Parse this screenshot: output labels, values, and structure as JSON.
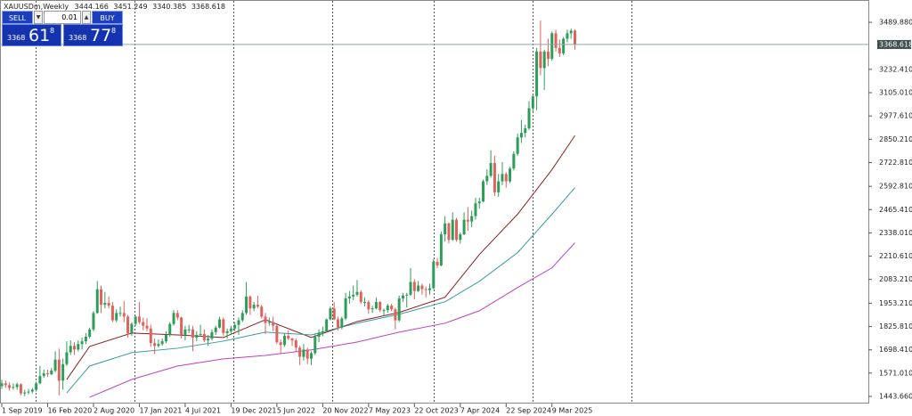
{
  "chart_data": {
    "type": "candlestick",
    "title": "XAUUSDm,Weekly",
    "categories": [
      "1 Sep 2019",
      null,
      null,
      null,
      null,
      null,
      null,
      null,
      null,
      null,
      null,
      null,
      "16 Feb 2020",
      null,
      null,
      null,
      null,
      null,
      null,
      null,
      null,
      null,
      null,
      null,
      "2 Aug 2020",
      null,
      null,
      null,
      null,
      null,
      null,
      null,
      null,
      null,
      null,
      null,
      "17 Jan 2021",
      null,
      null,
      null,
      null,
      null,
      null,
      null,
      null,
      null,
      null,
      null,
      "4 Jul 2021",
      null,
      null,
      null,
      null,
      null,
      null,
      null,
      null,
      null,
      null,
      null,
      "19 Dec 2021",
      null,
      null,
      null,
      null,
      null,
      null,
      null,
      null,
      null,
      null,
      null,
      "5 Jun 2022",
      null,
      null,
      null,
      null,
      null,
      null,
      null,
      null,
      null,
      null,
      null,
      "20 Nov 2022",
      null,
      null,
      null,
      null,
      null,
      null,
      null,
      null,
      null,
      null,
      null,
      "7 May 2023",
      null,
      null,
      null,
      null,
      null,
      null,
      null,
      null,
      null,
      null,
      null,
      "22 Oct 2023",
      null,
      null,
      null,
      null,
      null,
      null,
      null,
      null,
      null,
      null,
      null,
      "7 Apr 2024",
      null,
      null,
      null,
      null,
      null,
      null,
      null,
      null,
      null,
      null,
      null,
      "22 Sep 2024",
      null,
      null,
      null,
      null,
      null,
      null,
      null,
      null,
      null,
      null,
      null,
      "9 Mar 2025",
      null,
      null,
      null,
      null,
      null,
      null
    ],
    "candles": [
      [
        1500,
        1535,
        1485,
        1515
      ],
      [
        1515,
        1530,
        1490,
        1505
      ],
      [
        1505,
        1520,
        1475,
        1490
      ],
      [
        1490,
        1515,
        1480,
        1495
      ],
      [
        1495,
        1520,
        1480,
        1510
      ],
      [
        1510,
        1515,
        1450,
        1460
      ],
      [
        1460,
        1480,
        1445,
        1465
      ],
      [
        1465,
        1485,
        1455,
        1470
      ],
      [
        1470,
        1490,
        1460,
        1480
      ],
      [
        1480,
        1525,
        1470,
        1515
      ],
      [
        1515,
        1610,
        1510,
        1555
      ],
      [
        1555,
        1590,
        1545,
        1570
      ],
      [
        1570,
        1590,
        1550,
        1565
      ],
      [
        1565,
        1600,
        1560,
        1585
      ],
      [
        1585,
        1690,
        1575,
        1645
      ],
      [
        1645,
        1705,
        1450,
        1530
      ],
      [
        1530,
        1650,
        1480,
        1620
      ],
      [
        1620,
        1745,
        1610,
        1685
      ],
      [
        1685,
        1750,
        1670,
        1720
      ],
      [
        1720,
        1740,
        1670,
        1700
      ],
      [
        1700,
        1750,
        1690,
        1730
      ],
      [
        1730,
        1765,
        1700,
        1745
      ],
      [
        1745,
        1790,
        1730,
        1770
      ],
      [
        1770,
        1820,
        1760,
        1810
      ],
      [
        1810,
        1910,
        1800,
        1900
      ],
      [
        1900,
        2075,
        1895,
        2030
      ],
      [
        2030,
        2050,
        1900,
        1945
      ],
      [
        1945,
        2015,
        1925,
        1955
      ],
      [
        1955,
        1990,
        1925,
        1940
      ],
      [
        1940,
        1960,
        1850,
        1860
      ],
      [
        1860,
        1920,
        1850,
        1900
      ],
      [
        1900,
        1935,
        1880,
        1900
      ],
      [
        1900,
        1965,
        1850,
        1880
      ],
      [
        1880,
        1890,
        1765,
        1790
      ],
      [
        1790,
        1850,
        1775,
        1840
      ],
      [
        1840,
        1885,
        1830,
        1880
      ],
      [
        1880,
        1960,
        1840,
        1850
      ],
      [
        1850,
        1875,
        1805,
        1830
      ],
      [
        1830,
        1870,
        1800,
        1815
      ],
      [
        1815,
        1835,
        1715,
        1735
      ],
      [
        1735,
        1760,
        1675,
        1720
      ],
      [
        1720,
        1755,
        1710,
        1730
      ],
      [
        1730,
        1760,
        1720,
        1745
      ],
      [
        1745,
        1800,
        1735,
        1780
      ],
      [
        1780,
        1850,
        1770,
        1840
      ],
      [
        1840,
        1915,
        1830,
        1900
      ],
      [
        1900,
        1915,
        1860,
        1875
      ],
      [
        1875,
        1880,
        1760,
        1780
      ],
      [
        1780,
        1830,
        1750,
        1810
      ],
      [
        1810,
        1835,
        1790,
        1810
      ],
      [
        1810,
        1830,
        1690,
        1765
      ],
      [
        1765,
        1800,
        1745,
        1780
      ],
      [
        1780,
        1835,
        1770,
        1785
      ],
      [
        1785,
        1810,
        1740,
        1750
      ],
      [
        1750,
        1780,
        1720,
        1760
      ],
      [
        1760,
        1810,
        1750,
        1795
      ],
      [
        1795,
        1830,
        1780,
        1820
      ],
      [
        1820,
        1880,
        1815,
        1865
      ],
      [
        1865,
        1875,
        1775,
        1790
      ],
      [
        1790,
        1815,
        1760,
        1800
      ],
      [
        1800,
        1830,
        1780,
        1815
      ],
      [
        1815,
        1850,
        1800,
        1835
      ],
      [
        1835,
        1875,
        1780,
        1860
      ],
      [
        1860,
        1915,
        1850,
        1900
      ],
      [
        1900,
        2070,
        1890,
        1990
      ],
      [
        1990,
        1995,
        1890,
        1925
      ],
      [
        1925,
        1960,
        1910,
        1945
      ],
      [
        1945,
        1995,
        1925,
        1935
      ],
      [
        1935,
        1945,
        1870,
        1880
      ],
      [
        1880,
        1900,
        1785,
        1845
      ],
      [
        1845,
        1875,
        1830,
        1850
      ],
      [
        1850,
        1880,
        1800,
        1830
      ],
      [
        1830,
        1835,
        1730,
        1740
      ],
      [
        1740,
        1755,
        1680,
        1725
      ],
      [
        1725,
        1790,
        1715,
        1775
      ],
      [
        1775,
        1805,
        1750,
        1760
      ],
      [
        1760,
        1765,
        1720,
        1750
      ],
      [
        1750,
        1760,
        1690,
        1710
      ],
      [
        1710,
        1720,
        1615,
        1660
      ],
      [
        1660,
        1730,
        1640,
        1700
      ],
      [
        1700,
        1710,
        1620,
        1650
      ],
      [
        1650,
        1690,
        1615,
        1680
      ],
      [
        1680,
        1785,
        1670,
        1770
      ],
      [
        1770,
        1810,
        1740,
        1790
      ],
      [
        1790,
        1825,
        1775,
        1800
      ],
      [
        1800,
        1870,
        1795,
        1865
      ],
      [
        1865,
        1935,
        1860,
        1925
      ],
      [
        1925,
        1960,
        1860,
        1865
      ],
      [
        1865,
        1880,
        1805,
        1820
      ],
      [
        1820,
        1880,
        1810,
        1870
      ],
      [
        1870,
        2010,
        1860,
        1980
      ],
      [
        1980,
        2020,
        1950,
        1990
      ],
      [
        1990,
        2050,
        1970,
        2000
      ],
      [
        2000,
        2080,
        1990,
        2015
      ],
      [
        2015,
        2025,
        1950,
        1960
      ],
      [
        1960,
        1985,
        1935,
        1960
      ],
      [
        1960,
        1970,
        1895,
        1920
      ],
      [
        1920,
        1940,
        1900,
        1925
      ],
      [
        1925,
        1985,
        1920,
        1960
      ],
      [
        1960,
        1965,
        1905,
        1915
      ],
      [
        1915,
        1925,
        1885,
        1915
      ],
      [
        1915,
        1950,
        1900,
        1940
      ],
      [
        1940,
        1950,
        1910,
        1920
      ],
      [
        1920,
        1930,
        1810,
        1860
      ],
      [
        1860,
        1995,
        1850,
        1980
      ],
      [
        1980,
        2010,
        1960,
        1995
      ],
      [
        1995,
        2010,
        1930,
        2000
      ],
      [
        2000,
        2145,
        1995,
        2070
      ],
      [
        2070,
        2085,
        1975,
        2020
      ],
      [
        2020,
        2075,
        2015,
        2050
      ],
      [
        2050,
        2060,
        2000,
        2030
      ],
      [
        2030,
        2045,
        1985,
        2025
      ],
      [
        2025,
        2060,
        2000,
        2035
      ],
      [
        2035,
        2195,
        2030,
        2180
      ],
      [
        2180,
        2200,
        2145,
        2160
      ],
      [
        2160,
        2345,
        2155,
        2330
      ],
      [
        2330,
        2430,
        2290,
        2390
      ],
      [
        2390,
        2395,
        2280,
        2300
      ],
      [
        2300,
        2450,
        2295,
        2410
      ],
      [
        2410,
        2420,
        2290,
        2300
      ],
      [
        2300,
        2340,
        2280,
        2330
      ],
      [
        2330,
        2450,
        2325,
        2410
      ],
      [
        2410,
        2480,
        2350,
        2400
      ],
      [
        2400,
        2460,
        2370,
        2430
      ],
      [
        2430,
        2530,
        2410,
        2500
      ],
      [
        2500,
        2530,
        2470,
        2510
      ],
      [
        2510,
        2630,
        2505,
        2620
      ],
      [
        2620,
        2685,
        2600,
        2650
      ],
      [
        2650,
        2790,
        2640,
        2720
      ],
      [
        2720,
        2760,
        2540,
        2560
      ],
      [
        2560,
        2660,
        2535,
        2620
      ],
      [
        2620,
        2725,
        2600,
        2660
      ],
      [
        2660,
        2670,
        2585,
        2620
      ],
      [
        2620,
        2700,
        2610,
        2690
      ],
      [
        2690,
        2785,
        2680,
        2770
      ],
      [
        2770,
        2880,
        2760,
        2860
      ],
      [
        2860,
        2955,
        2830,
        2885
      ],
      [
        2885,
        2930,
        2860,
        2910
      ],
      [
        2910,
        3060,
        2900,
        3020
      ],
      [
        3020,
        3100,
        3000,
        3085
      ],
      [
        3085,
        3350,
        3010,
        3330
      ],
      [
        3330,
        3500,
        3200,
        3240
      ],
      [
        3240,
        3340,
        3120,
        3330
      ],
      [
        3330,
        3400,
        3250,
        3290
      ],
      [
        3290,
        3440,
        3280,
        3430
      ],
      [
        3430,
        3450,
        3330,
        3350
      ],
      [
        3350,
        3395,
        3300,
        3320
      ],
      [
        3320,
        3410,
        3310,
        3400
      ],
      [
        3400,
        3450,
        3380,
        3430
      ],
      [
        3430,
        3455,
        3400,
        3444.166
      ],
      [
        3444.166,
        3451.249,
        3340.385,
        3368.618
      ]
    ],
    "up_color": "#2e9d5a",
    "down_color": "#e0625c",
    "series": [
      {
        "type": "line",
        "color": "#8b1e1e",
        "x": [
          17,
          23,
          34,
          46,
          58,
          69,
          81,
          93,
          104,
          116,
          125,
          135,
          144,
          150
        ],
        "values": [
          1536,
          1717,
          1790,
          1780,
          1766,
          1863,
          1766,
          1853,
          1903,
          1986,
          2220,
          2440,
          2684,
          2870
        ]
      },
      {
        "type": "line",
        "color": "#3a9a9a",
        "x": [
          17,
          23,
          34,
          46,
          58,
          69,
          81,
          93,
          104,
          116,
          125,
          135,
          144,
          150
        ],
        "values": [
          1463,
          1610,
          1683,
          1707,
          1746,
          1795,
          1780,
          1844,
          1893,
          1961,
          2073,
          2230,
          2440,
          2586
        ]
      },
      {
        "type": "line",
        "color": "#c040c0",
        "x": [
          23,
          34,
          46,
          58,
          69,
          81,
          93,
          104,
          116,
          125,
          135,
          144,
          150
        ],
        "values": [
          1439,
          1536,
          1610,
          1649,
          1668,
          1698,
          1741,
          1795,
          1844,
          1912,
          2039,
          2147,
          2284
        ]
      }
    ],
    "ylim": [
      1404.6,
      3602.2
    ],
    "yticks": [
      {
        "value": 1443.66,
        "label": "1443.660"
      },
      {
        "value": 1571.01,
        "label": "1571.010"
      },
      {
        "value": 1698.41,
        "label": "1698.410"
      },
      {
        "value": 1825.81,
        "label": "1825.810"
      },
      {
        "value": 1953.21,
        "label": "1953.210"
      },
      {
        "value": 2083.21,
        "label": "2083.210"
      },
      {
        "value": 2210.61,
        "label": "2210.610"
      },
      {
        "value": 2338.01,
        "label": "2338.010"
      },
      {
        "value": 2465.41,
        "label": "2465.410"
      },
      {
        "value": 2592.81,
        "label": "2592.810"
      },
      {
        "value": 2722.81,
        "label": "2722.810"
      },
      {
        "value": 2850.21,
        "label": "2850.210"
      },
      {
        "value": 2977.61,
        "label": "2977.610"
      },
      {
        "value": 3105.01,
        "label": "3105.010"
      },
      {
        "value": 3232.41,
        "label": "3232.410"
      },
      {
        "value": 3489.88,
        "label": "3489.880"
      }
    ],
    "grid": false
  },
  "trade_panel": {
    "sell": "SELL",
    "lot": "0.01",
    "buy": "BUY",
    "bid": {
      "big": "3368",
      "pips": "61",
      "point": "8"
    },
    "ask": {
      "big": "3368",
      "pips": "77",
      "point": "8"
    }
  }
}
